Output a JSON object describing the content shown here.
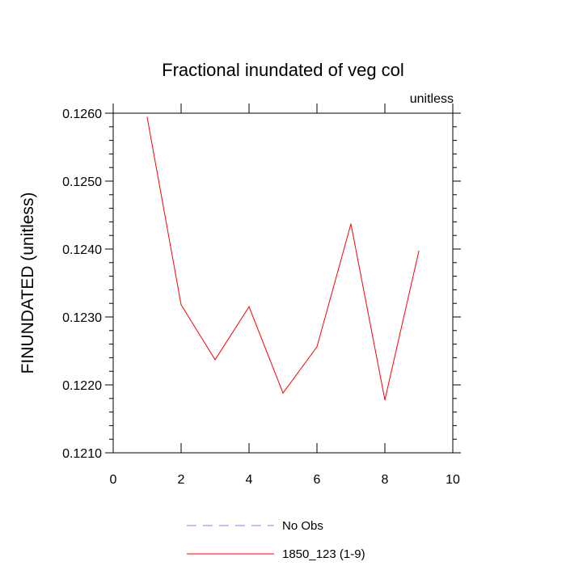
{
  "chart_data": {
    "type": "line",
    "title": "Fractional inundated of veg col",
    "units_label": "unitless",
    "xlabel": "",
    "ylabel": "FINUNDATED  (unitless)",
    "xlim": [
      0,
      10
    ],
    "ylim": [
      0.121,
      0.126
    ],
    "x_ticks": [
      0,
      2,
      4,
      6,
      8,
      10
    ],
    "x_tick_labels": [
      "0",
      "2",
      "4",
      "6",
      "8",
      "10"
    ],
    "y_ticks": [
      0.121,
      0.122,
      0.123,
      0.124,
      0.125,
      0.126
    ],
    "y_tick_labels": [
      "0.1210",
      "0.1220",
      "0.1230",
      "0.1240",
      "0.1250",
      "0.1260"
    ],
    "grid": false,
    "legend_position": "bottom",
    "series": [
      {
        "name": "1850_123 (1-9)",
        "color": "#ff0000",
        "dash": "solid",
        "x": [
          1,
          2,
          3,
          4,
          5,
          6,
          7,
          8,
          9
        ],
        "values": [
          0.12594,
          0.12318,
          0.12237,
          0.12315,
          0.12188,
          0.12256,
          0.12437,
          0.12178,
          0.12397
        ]
      }
    ],
    "legend": [
      {
        "label": "No Obs",
        "color": "#8080ff",
        "dash": "dashed"
      },
      {
        "label": "1850_123 (1-9)",
        "color": "#ff0000",
        "dash": "solid"
      }
    ]
  }
}
